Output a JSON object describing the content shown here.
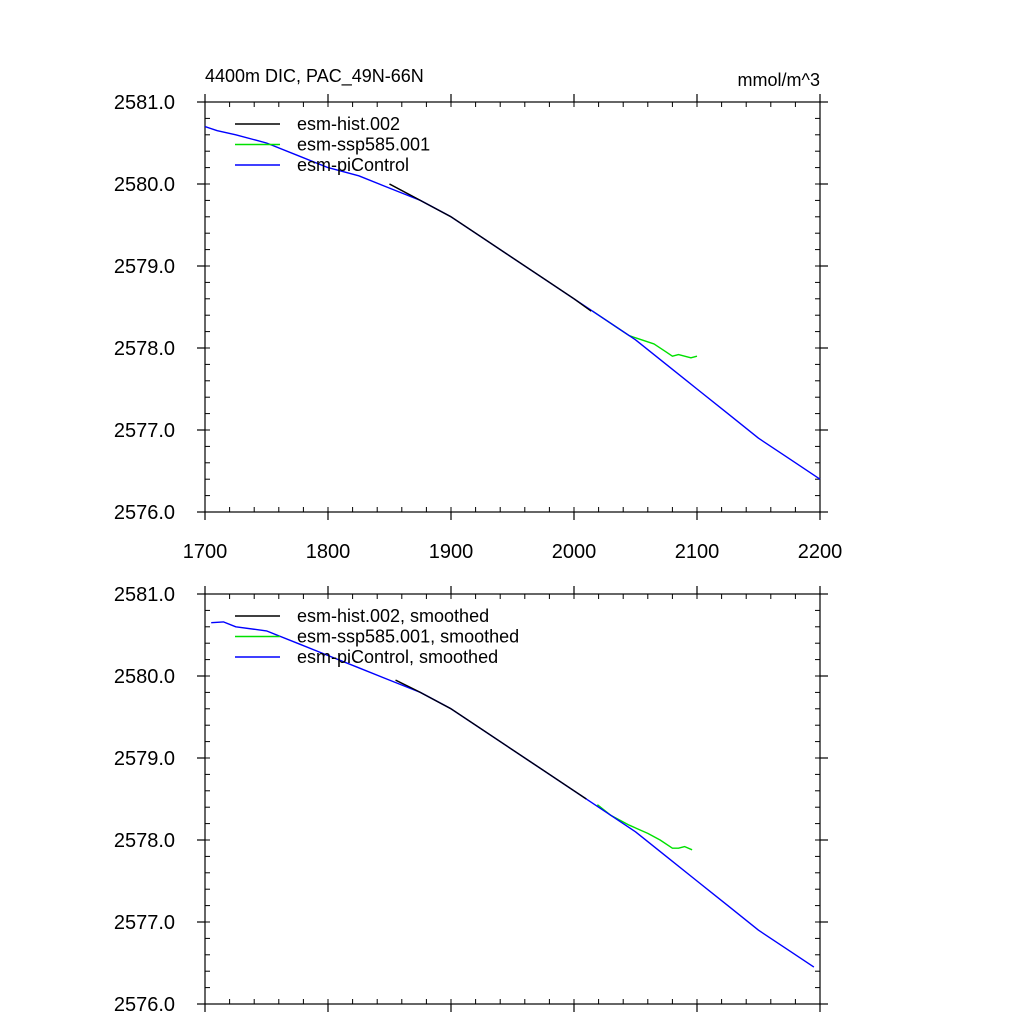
{
  "chart_data": [
    {
      "type": "line",
      "title": "4400m DIC, PAC_49N-66N",
      "units": "mmol/m^3",
      "xlim": [
        1700,
        2200
      ],
      "ylim": [
        2576.0,
        2581.0
      ],
      "xticks": [
        "1700",
        "1800",
        "1900",
        "2000",
        "2100",
        "2200"
      ],
      "yticks": [
        "2576.0",
        "2577.0",
        "2578.0",
        "2579.0",
        "2580.0",
        "2581.0"
      ],
      "legend_position": "top-left",
      "series": [
        {
          "name": "esm-hist.002",
          "color": "#000000",
          "x": [
            1850,
            1875,
            1900,
            1925,
            1950,
            1975,
            2000,
            2014
          ],
          "y": [
            2580.0,
            2579.8,
            2579.6,
            2579.35,
            2579.1,
            2578.85,
            2578.6,
            2578.45
          ]
        },
        {
          "name": "esm-ssp585.001",
          "color": "#00e000",
          "x": [
            2015,
            2025,
            2035,
            2045,
            2055,
            2065,
            2075,
            2080,
            2085,
            2090,
            2095,
            2100
          ],
          "y": [
            2578.45,
            2578.35,
            2578.25,
            2578.15,
            2578.1,
            2578.05,
            2577.95,
            2577.9,
            2577.92,
            2577.9,
            2577.88,
            2577.9
          ]
        },
        {
          "name": "esm-piControl",
          "color": "#0000ff",
          "x": [
            1700,
            1710,
            1725,
            1750,
            1775,
            1800,
            1825,
            1850,
            1875,
            1900,
            1925,
            1950,
            1975,
            2000,
            2025,
            2050,
            2075,
            2100,
            2125,
            2150,
            2175,
            2200
          ],
          "y": [
            2580.7,
            2580.65,
            2580.6,
            2580.5,
            2580.35,
            2580.2,
            2580.1,
            2579.95,
            2579.8,
            2579.6,
            2579.35,
            2579.1,
            2578.85,
            2578.6,
            2578.35,
            2578.1,
            2577.8,
            2577.5,
            2577.2,
            2576.9,
            2576.65,
            2576.4
          ]
        }
      ]
    },
    {
      "type": "line",
      "title": "",
      "xlim": [
        1700,
        2200
      ],
      "ylim": [
        2576.0,
        2581.0
      ],
      "yticks": [
        "2576.0",
        "2577.0",
        "2578.0",
        "2579.0",
        "2580.0",
        "2581.0"
      ],
      "legend_position": "top-left",
      "series": [
        {
          "name": "esm-hist.002, smoothed",
          "color": "#000000",
          "x": [
            1855,
            1875,
            1900,
            1925,
            1950,
            1975,
            2000,
            2010
          ],
          "y": [
            2579.95,
            2579.8,
            2579.6,
            2579.35,
            2579.1,
            2578.85,
            2578.6,
            2578.5
          ]
        },
        {
          "name": "esm-ssp585.001, smoothed",
          "color": "#00e000",
          "x": [
            2019,
            2030,
            2045,
            2060,
            2070,
            2080,
            2085,
            2090,
            2096
          ],
          "y": [
            2578.43,
            2578.3,
            2578.18,
            2578.08,
            2578.0,
            2577.9,
            2577.9,
            2577.92,
            2577.88
          ]
        },
        {
          "name": "esm-piControl, smoothed",
          "color": "#0000ff",
          "x": [
            1705,
            1715,
            1725,
            1750,
            1775,
            1800,
            1825,
            1850,
            1875,
            1900,
            1925,
            1950,
            1975,
            2000,
            2025,
            2050,
            2075,
            2100,
            2125,
            2150,
            2175,
            2195
          ],
          "y": [
            2580.65,
            2580.66,
            2580.6,
            2580.55,
            2580.4,
            2580.25,
            2580.1,
            2579.95,
            2579.8,
            2579.6,
            2579.35,
            2579.1,
            2578.85,
            2578.6,
            2578.35,
            2578.1,
            2577.8,
            2577.5,
            2577.2,
            2576.9,
            2576.65,
            2576.45
          ]
        }
      ]
    }
  ]
}
